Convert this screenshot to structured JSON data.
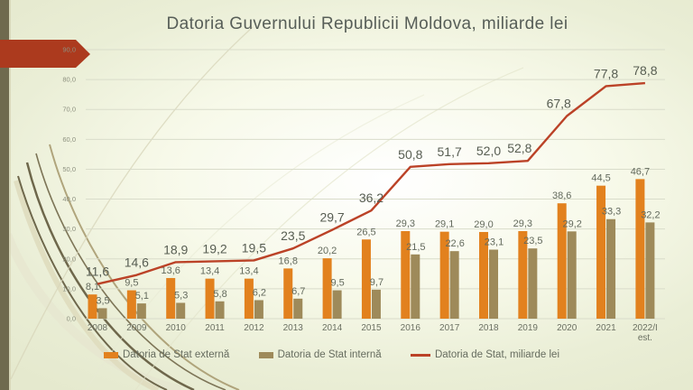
{
  "slide": {
    "title": "Datoria Guvernului Republicii Moldova, miliarde lei",
    "arrow_color": "#ac3a1e"
  },
  "chart_data": {
    "type": "combo-bar-line",
    "title": "Datoria Guvernului Republicii Moldova, miliarde lei",
    "categories": [
      "2008",
      "2009",
      "2010",
      "2011",
      "2012",
      "2013",
      "2014",
      "2015",
      "2016",
      "2017",
      "2018",
      "2019",
      "2020",
      "2021",
      "2022/I est."
    ],
    "series": [
      {
        "name": "Datoria de Stat externă",
        "type": "bar",
        "color": "#e2811e",
        "values": [
          8.1,
          9.5,
          13.6,
          13.4,
          13.4,
          16.8,
          20.2,
          26.5,
          29.3,
          29.1,
          29.0,
          29.3,
          38.6,
          44.5,
          46.7
        ]
      },
      {
        "name": "Datoria de Stat internă",
        "type": "bar",
        "color": "#9e8a5a",
        "values": [
          3.5,
          5.1,
          5.3,
          5.8,
          6.2,
          6.7,
          9.5,
          9.7,
          21.5,
          22.6,
          23.1,
          23.5,
          29.2,
          33.3,
          32.2
        ]
      },
      {
        "name": "Datoria de Stat, miliarde lei",
        "type": "line",
        "color": "#bb4227",
        "values": [
          11.6,
          14.6,
          18.9,
          19.2,
          19.5,
          23.5,
          29.7,
          36.2,
          50.8,
          51.7,
          52.0,
          52.8,
          67.8,
          77.8,
          78.8
        ]
      }
    ],
    "ylim": [
      0,
      90
    ],
    "yticks": [
      0,
      10,
      20,
      30,
      40,
      50,
      60,
      70,
      80,
      90
    ],
    "number_format": "comma-decimal",
    "grid": true,
    "legend_position": "bottom"
  }
}
